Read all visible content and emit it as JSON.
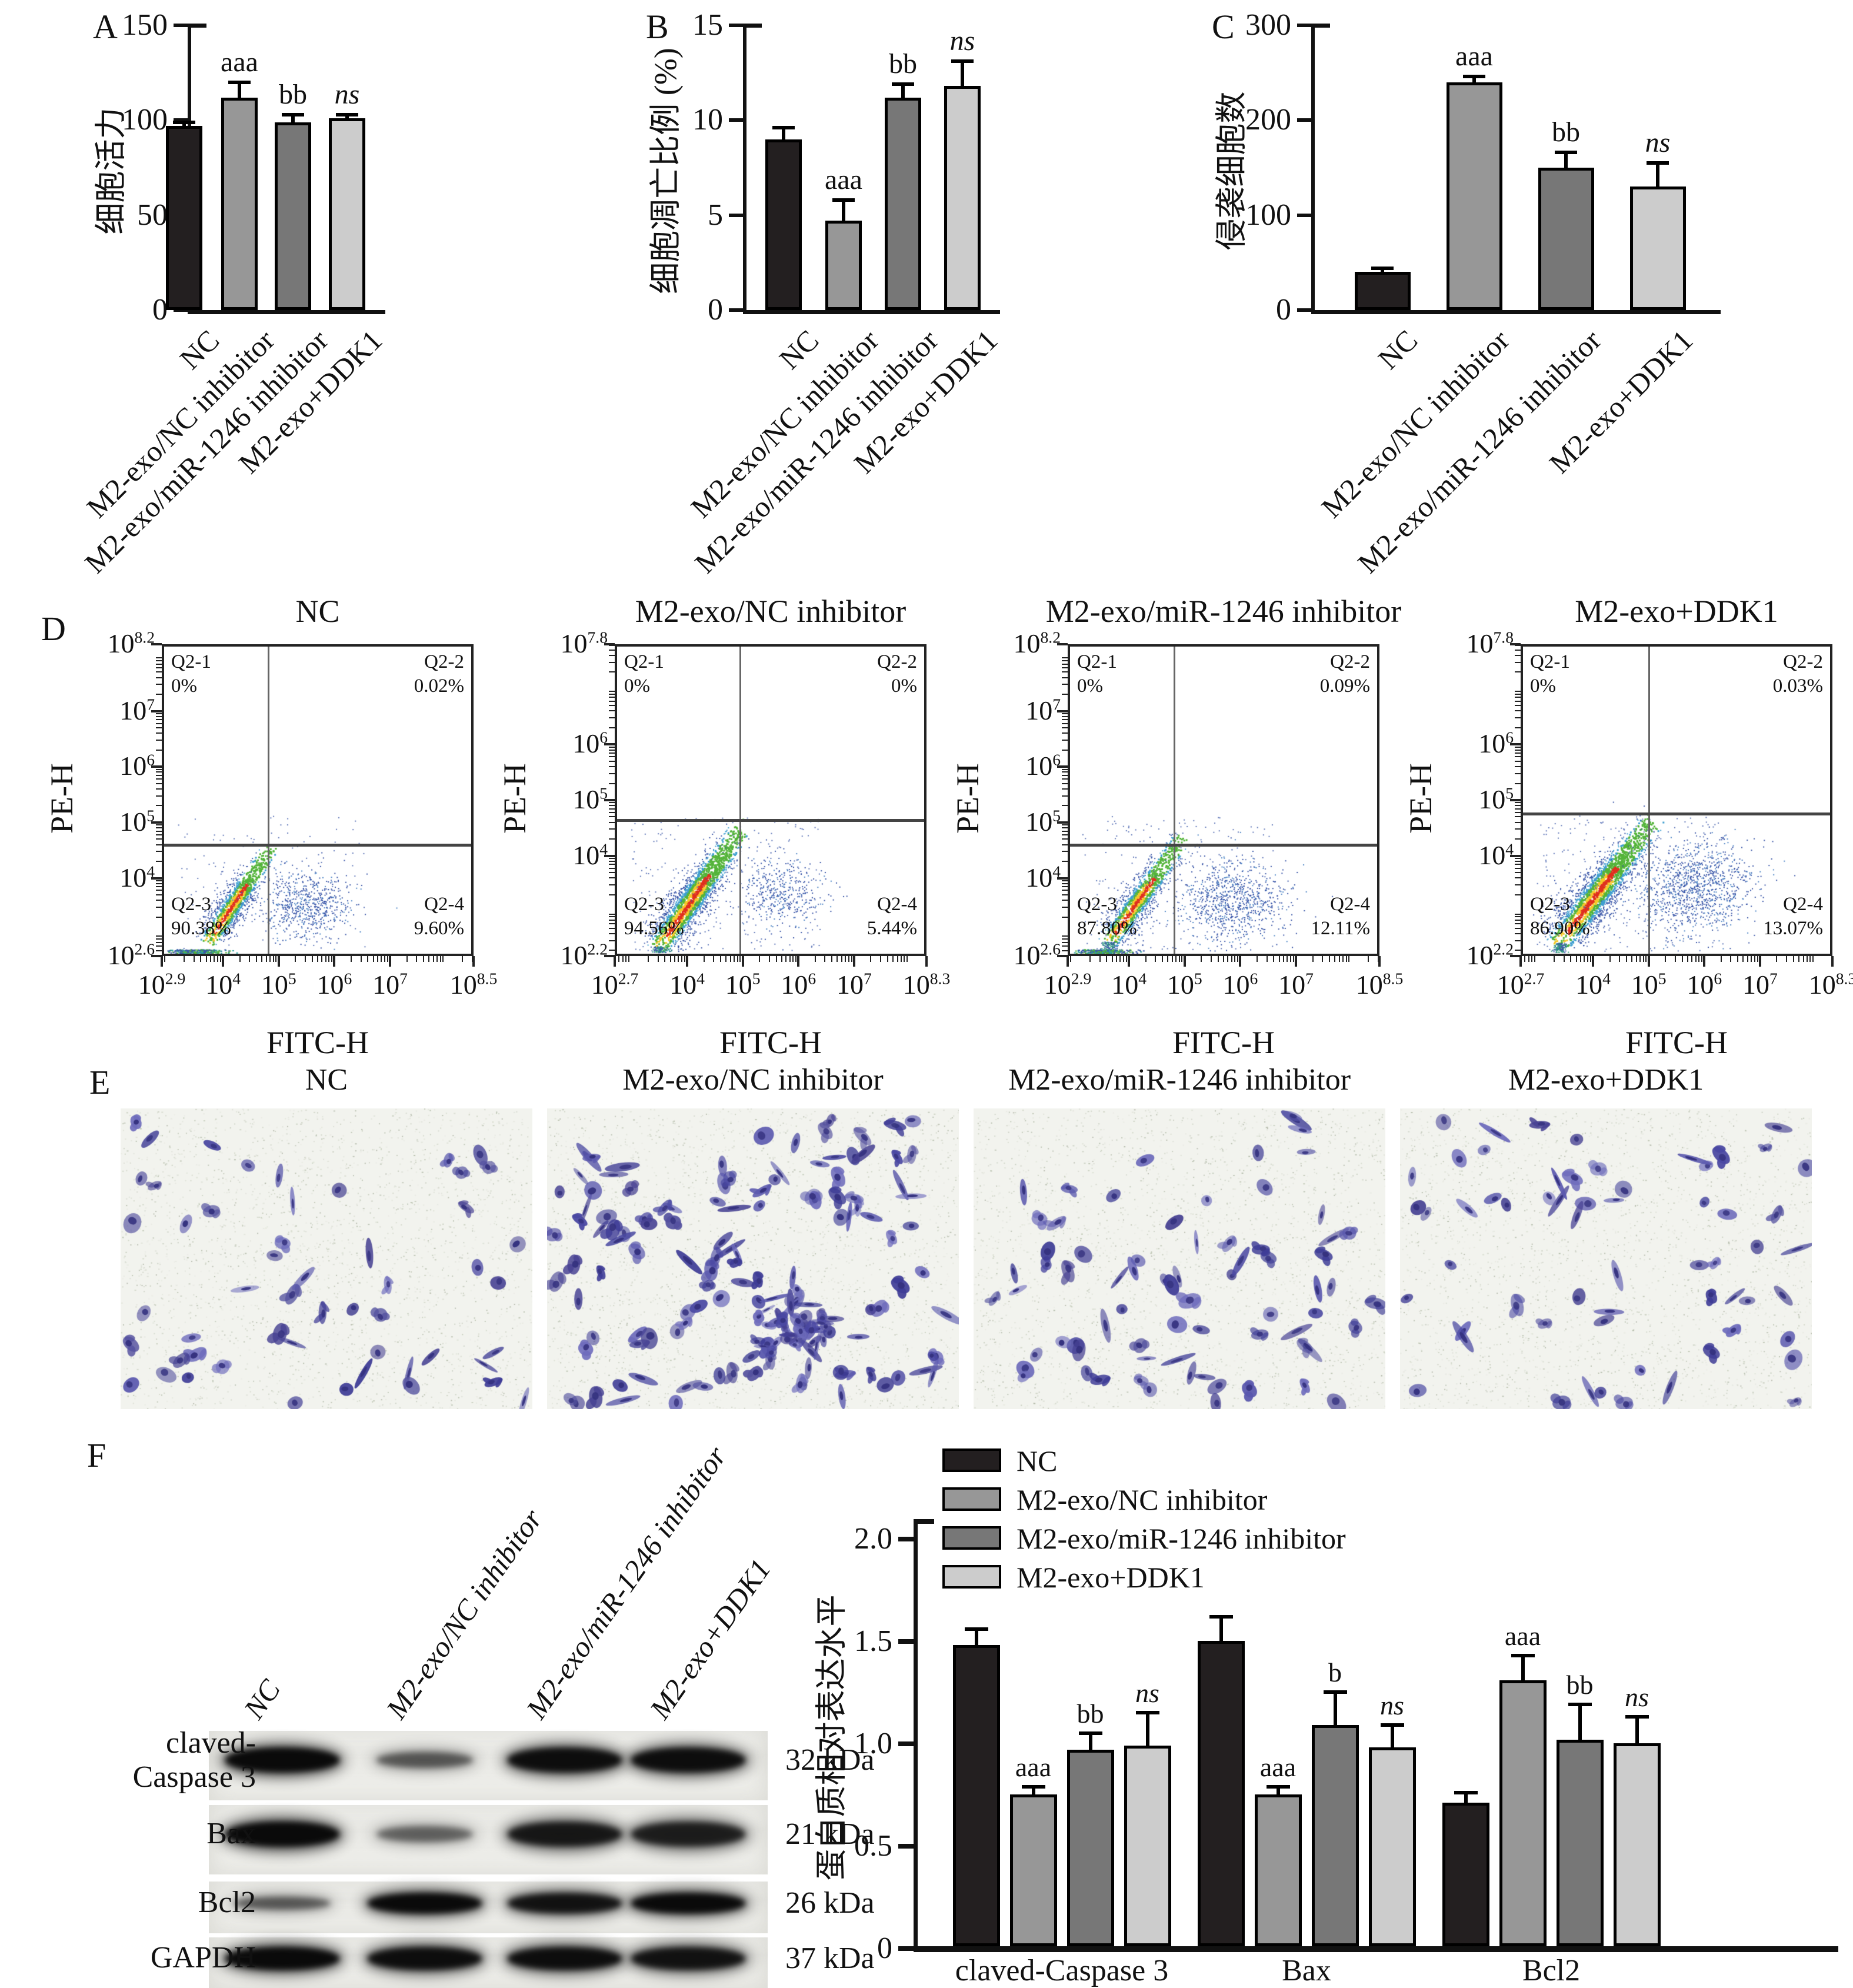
{
  "panels": {
    "A": "A",
    "B": "B",
    "C": "C",
    "D": "D",
    "E": "E",
    "F": "F"
  },
  "groups": [
    "NC",
    "M2-exo/NC inhibitor",
    "M2-exo/miR-1246 inhibitor",
    "M2-exo+DDK1"
  ],
  "colors": {
    "nc": "#231f20",
    "nc_inhibitor": "#979797",
    "mir_inhibitor": "#777777",
    "ddk1": "#cccccc",
    "axis": "#111111",
    "scatter_blue": "#3a56a8",
    "scatter_light_blue": "#4f86c6",
    "scatter_green": "#54b43a",
    "scatter_yellow": "#f5c829",
    "scatter_red": "#e0301e",
    "cell_purple": "#4a48a2",
    "blot_band": "#0a0a0a"
  },
  "chart_data": [
    {
      "id": "A",
      "type": "bar",
      "title": "",
      "ylabel": "细胞活力",
      "categories": [
        "NC",
        "M2-exo/NC inhibitor",
        "M2-exo/miR-1246 inhibitor",
        "M2-exo+DDK1"
      ],
      "values": [
        97,
        112,
        99,
        101
      ],
      "errors": [
        2,
        8,
        4,
        2
      ],
      "sig": [
        "",
        "aaa",
        "bb",
        "ns"
      ],
      "ylim": [
        0,
        150
      ],
      "yticks": [
        0,
        50,
        100,
        150
      ]
    },
    {
      "id": "B",
      "type": "bar",
      "title": "",
      "ylabel": "细胞凋亡比例 (%)",
      "categories": [
        "NC",
        "M2-exo/NC inhibitor",
        "M2-exo/miR-1246 inhibitor",
        "M2-exo+DDK1"
      ],
      "values": [
        9.0,
        4.7,
        11.2,
        11.8
      ],
      "errors": [
        0.6,
        1.1,
        0.7,
        1.3
      ],
      "sig": [
        "",
        "aaa",
        "bb",
        "ns"
      ],
      "ylim": [
        0,
        15
      ],
      "yticks": [
        0,
        5,
        10,
        15
      ]
    },
    {
      "id": "C",
      "type": "bar",
      "title": "",
      "ylabel": "侵袭细胞数",
      "categories": [
        "NC",
        "M2-exo/NC inhibitor",
        "M2-exo/miR-1246 inhibitor",
        "M2-exo+DDK1"
      ],
      "values": [
        40,
        240,
        150,
        130
      ],
      "errors": [
        4,
        6,
        16,
        25
      ],
      "sig": [
        "",
        "aaa",
        "bb",
        "ns"
      ],
      "ylim": [
        0,
        300
      ],
      "yticks": [
        0,
        100,
        200,
        300
      ]
    },
    {
      "id": "D",
      "type": "scatter",
      "xlabel": "FITC-H",
      "ylabel": "PE-H",
      "quadrant_names": [
        "Q2-1",
        "Q2-2",
        "Q2-3",
        "Q2-4"
      ],
      "plots": [
        {
          "title": "NC",
          "xlim": [
            2.9,
            8.5
          ],
          "ylim": [
            2.6,
            8.2
          ],
          "xticks": [
            2.9,
            4,
            5,
            6,
            7,
            8.5
          ],
          "yticks": [
            8.2,
            7,
            6,
            5,
            4,
            2.6
          ],
          "gate": [
            0.34,
            0.64
          ],
          "quadrant_values": [
            "0%",
            "0.02%",
            "90.38%",
            "9.60%"
          ]
        },
        {
          "title": "M2-exo/NC inhibitor",
          "xlim": [
            2.7,
            8.3
          ],
          "ylim": [
            2.2,
            7.8
          ],
          "xticks": [
            2.7,
            4,
            5,
            6,
            7,
            8.3
          ],
          "yticks": [
            7.8,
            6,
            5,
            4,
            2.2
          ],
          "gate": [
            0.4,
            0.56
          ],
          "quadrant_values": [
            "0%",
            "0%",
            "94.56%",
            "5.44%"
          ]
        },
        {
          "title": "M2-exo/miR-1246 inhibitor",
          "xlim": [
            2.9,
            8.5
          ],
          "ylim": [
            2.6,
            8.2
          ],
          "xticks": [
            2.9,
            4,
            5,
            6,
            7,
            8.5
          ],
          "yticks": [
            8.2,
            7,
            6,
            5,
            4,
            2.6
          ],
          "gate": [
            0.34,
            0.64
          ],
          "quadrant_values": [
            "0%",
            "0.09%",
            "87.80%",
            "12.11%"
          ]
        },
        {
          "title": "M2-exo+DDK1",
          "xlim": [
            2.7,
            8.3
          ],
          "ylim": [
            2.2,
            7.8
          ],
          "xticks": [
            2.7,
            4,
            5,
            6,
            7,
            8.3
          ],
          "yticks": [
            7.8,
            6,
            5,
            4,
            2.2
          ],
          "gate": [
            0.41,
            0.54
          ],
          "quadrant_values": [
            "0%",
            "0.03%",
            "86.90%",
            "13.07%"
          ]
        }
      ]
    },
    {
      "id": "F",
      "type": "grouped-bar",
      "ylabel": "蛋白质相对表达水平",
      "categories": [
        "claved-Caspase 3",
        "Bax",
        "Bcl2"
      ],
      "series": [
        {
          "name": "NC",
          "color_key": "nc",
          "values": [
            1.47,
            1.49,
            0.7
          ],
          "errors": [
            0.08,
            0.12,
            0.05
          ],
          "sig": [
            "",
            "",
            ""
          ]
        },
        {
          "name": "M2-exo/NC inhibitor",
          "color_key": "nc_inhibitor",
          "values": [
            0.74,
            0.74,
            1.3
          ],
          "errors": [
            0.04,
            0.04,
            0.12
          ],
          "sig": [
            "aaa",
            "aaa",
            "aaa"
          ]
        },
        {
          "name": "M2-exo/miR-1246 inhibitor",
          "color_key": "mir_inhibitor",
          "values": [
            0.96,
            1.08,
            1.01
          ],
          "errors": [
            0.08,
            0.16,
            0.17
          ],
          "sig": [
            "bb",
            "b",
            "bb"
          ]
        },
        {
          "name": "M2-exo+DDK1",
          "color_key": "ddk1",
          "values": [
            0.98,
            0.97,
            0.99
          ],
          "errors": [
            0.16,
            0.11,
            0.13
          ],
          "sig": [
            "ns",
            "ns",
            "ns"
          ]
        }
      ],
      "ylim": [
        0,
        2.0
      ],
      "yticks": [
        0,
        0.5,
        1.0,
        1.5,
        2.0
      ],
      "ytick_labels": [
        "0",
        "0.5",
        "1.0",
        "1.5",
        "2.0"
      ],
      "legend_position": "top-left-inside"
    }
  ],
  "panelE": {
    "titles": [
      "NC",
      "M2-exo/NC inhibitor",
      "M2-exo/miR-1246 inhibitor",
      "M2-exo+DDK1"
    ],
    "stain": "crystal-violet purple cells on pale background",
    "relative_cell_density": [
      52,
      118,
      72,
      60
    ],
    "dense_cluster_in_image": 2
  },
  "panelF_blot": {
    "lane_labels": [
      "NC",
      "M2-exo/NC inhibitor",
      "M2-exo/miR-1246 inhibitor",
      "M2-exo+DDK1"
    ],
    "rows": [
      {
        "label_lines": [
          "claved-",
          "Caspase 3"
        ],
        "kda": "32 kDa",
        "intensities": [
          1,
          0.5,
          0.95,
          0.95
        ]
      },
      {
        "label_lines": [
          "Bax"
        ],
        "kda": "21 kDa",
        "intensities": [
          1,
          0.45,
          0.85,
          0.8
        ]
      },
      {
        "label_lines": [
          "Bcl2"
        ],
        "kda": "26 kDa",
        "intensities": [
          0.5,
          1,
          0.9,
          1
        ]
      },
      {
        "label_lines": [
          "GAPDH"
        ],
        "kda": "37 kDa",
        "intensities": [
          1,
          0.95,
          0.95,
          0.9
        ]
      }
    ]
  }
}
